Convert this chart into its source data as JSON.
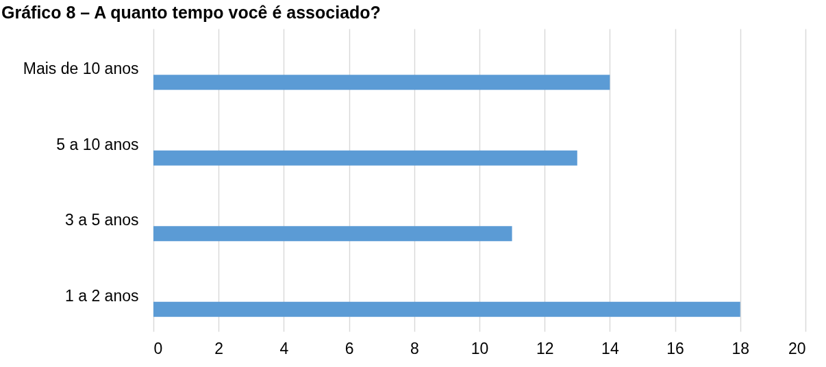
{
  "chart_data": {
    "type": "bar",
    "orientation": "horizontal",
    "title": "Gráfico 8 – A quanto tempo você é associado?",
    "categories": [
      "Mais de 10 anos",
      "5 a 10 anos",
      "3 a 5 anos",
      "1 a 2 anos"
    ],
    "values": [
      14,
      13,
      11,
      18
    ],
    "color": "#5b9bd5",
    "xlim": [
      0,
      20
    ],
    "xticks": [
      0,
      2,
      4,
      6,
      8,
      10,
      12,
      14,
      16,
      18,
      20
    ],
    "grid": "x"
  }
}
